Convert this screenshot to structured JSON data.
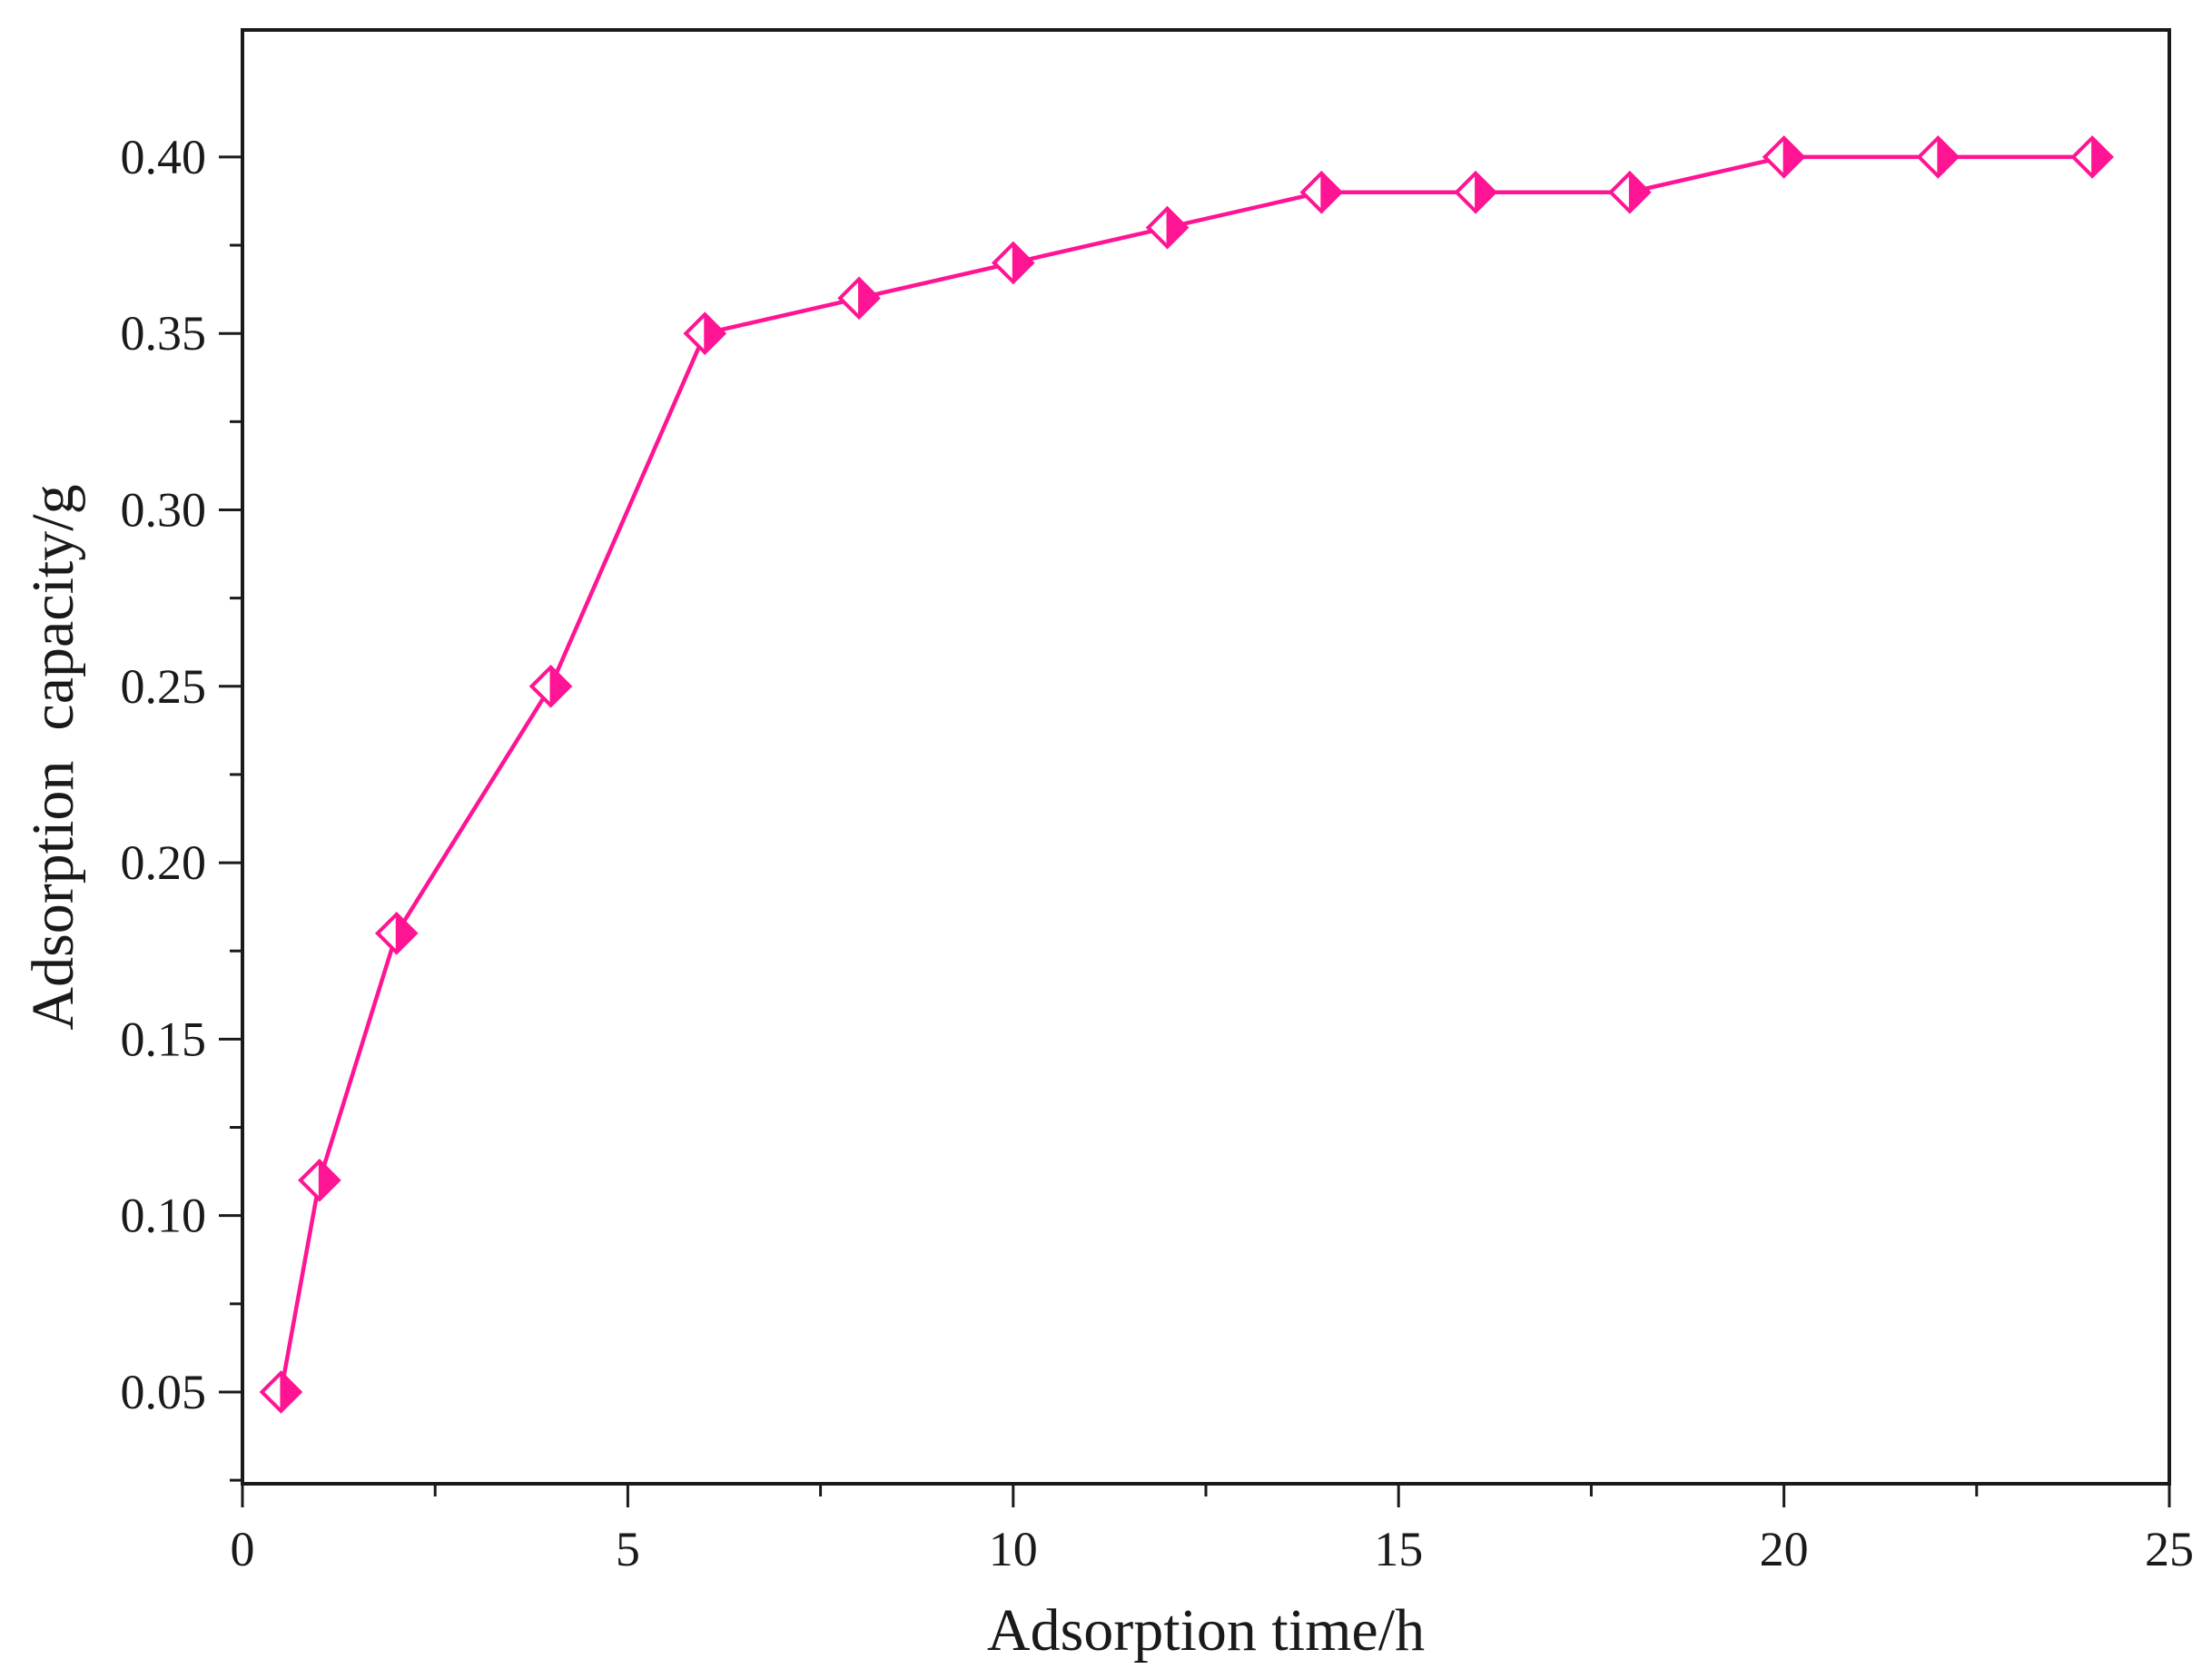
{
  "chart_data": {
    "type": "line",
    "title": "",
    "xlabel": "Adsorption time/h",
    "ylabel": "Adsorption  capacity/g",
    "xlim": [
      0,
      25
    ],
    "ylim": [
      0.024,
      0.436
    ],
    "x_ticks": [
      0,
      5,
      10,
      15,
      20,
      25
    ],
    "x_tick_labels": [
      "0",
      "5",
      "10",
      "15",
      "20",
      "25"
    ],
    "y_ticks": [
      0.05,
      0.1,
      0.15,
      0.2,
      0.25,
      0.3,
      0.35,
      0.4
    ],
    "y_tick_labels": [
      "0.05",
      "0.10",
      "0.15",
      "0.20",
      "0.25",
      "0.30",
      "0.35",
      "0.40"
    ],
    "grid": false,
    "series": [
      {
        "color": "#ff1493",
        "marker": "half-filled-diamond",
        "x": [
          0.5,
          1,
          2,
          4,
          6,
          8,
          10,
          12,
          14,
          16,
          18,
          20,
          22,
          24
        ],
        "y": [
          0.05,
          0.11,
          0.18,
          0.25,
          0.35,
          0.36,
          0.37,
          0.38,
          0.39,
          0.39,
          0.39,
          0.4,
          0.4,
          0.4
        ]
      }
    ]
  }
}
